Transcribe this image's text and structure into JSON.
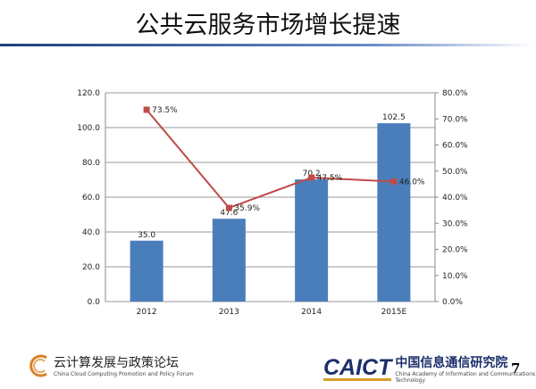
{
  "header": {
    "title": "公共云服务市场增长提速"
  },
  "chart_data": {
    "type": "bar+line",
    "title": "",
    "categories": [
      "2012",
      "2013",
      "2014",
      "2015E"
    ],
    "series": [
      {
        "type": "bar",
        "axis": "left",
        "values": [
          35.0,
          47.6,
          70.2,
          102.5
        ],
        "labels": [
          "35.0",
          "47.6",
          "70.2",
          "102.5"
        ],
        "color": "#4a7ebb"
      },
      {
        "type": "line",
        "axis": "right",
        "values": [
          73.5,
          35.9,
          47.5,
          46.0
        ],
        "labels": [
          "73.5%",
          "35.9%",
          "47.5%",
          "46.0%"
        ],
        "color": "#be4b48"
      }
    ],
    "ylim_left": [
      0,
      120
    ],
    "yticks_left": [
      "0.0",
      "20.0",
      "40.0",
      "60.0",
      "80.0",
      "100.0",
      "120.0"
    ],
    "ylim_right": [
      0,
      80
    ],
    "yticks_right": [
      "0.0%",
      "10.0%",
      "20.0%",
      "30.0%",
      "40.0%",
      "50.0%",
      "60.0%",
      "70.0%",
      "80.0%"
    ],
    "grid": true,
    "legend": "none"
  },
  "footer": {
    "left_logo": "CPP",
    "left_cn": "云计算发展与政策论坛",
    "left_en": "China Cloud Computing Promotion and Policy Forum",
    "right_logo": "CAICT",
    "right_cn": "中国信息通信研究院",
    "right_en": "China Academy of Information and Communications Technology",
    "page_number": "7"
  }
}
